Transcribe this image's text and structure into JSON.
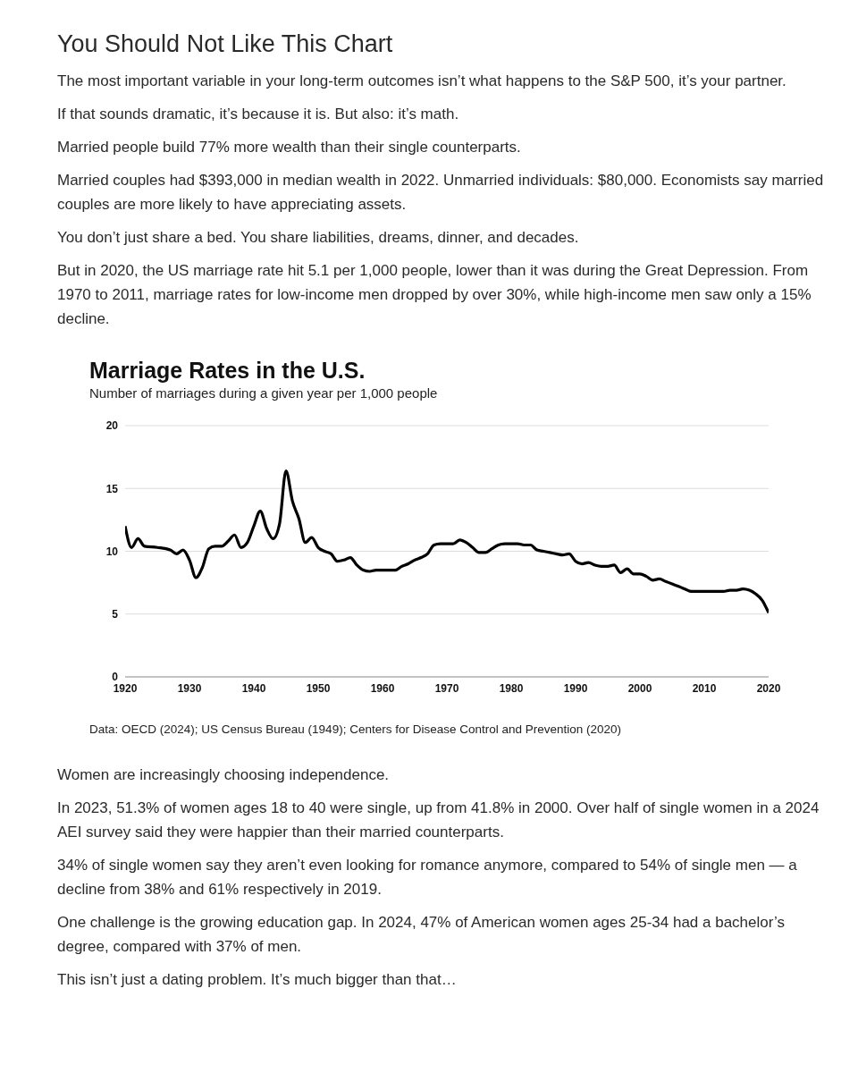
{
  "chart_data": [
    {
      "type": "other",
      "title": "You Should Not Like This Chart",
      "annotations": [
        "The most important variable in your long-term outcomes isn’t what happens to the S&P 500, it’s your partner.",
        "If that sounds dramatic, it’s because it is. But also: it’s math.",
        "Married people build 77% more wealth than their single counterparts.",
        "Married couples had $393,000 in median wealth in 2022. Unmarried individuals: $80,000. Economists say married couples are more likely to have appreciating assets.",
        "You don’t just share a bed. You share liabilities, dreams, dinner, and decades.",
        "But in 2020, the US marriage rate hit 5.1 per 1,000 people, lower than it was during the Great Depression. From 1970 to 2011, marriage rates for low-income men dropped by over 30%, while high-income men saw only a 15% decline."
      ]
    },
    {
      "type": "line",
      "title": "Marriage Rates in the U.S.",
      "subtitle": "Number of marriages during a given year per 1,000 people",
      "grid": "y",
      "legend": false,
      "marker": "none",
      "line_style": "solid",
      "xlim": [
        1920,
        2020
      ],
      "xticks": [
        1920,
        1930,
        1940,
        1950,
        1960,
        1970,
        1980,
        1990,
        2000,
        2010,
        2020
      ],
      "ylim": [
        0,
        20
      ],
      "yticks": [
        0,
        5,
        10,
        15,
        20
      ],
      "annotations": [
        "Data: OECD (2024); US Census Bureau (1949); Centers for Disease Control and Prevention (2020)"
      ],
      "series": [
        {
          "color": "#000000",
          "x": [
            1920,
            1921,
            1922,
            1923,
            1925,
            1927,
            1928,
            1929,
            1930,
            1931,
            1932,
            1933,
            1934,
            1935,
            1936,
            1937,
            1938,
            1939,
            1940,
            1941,
            1942,
            1943,
            1944,
            1945,
            1946,
            1947,
            1948,
            1949,
            1950,
            1951,
            1952,
            1953,
            1954,
            1955,
            1956,
            1957,
            1958,
            1959,
            1960,
            1962,
            1963,
            1964,
            1965,
            1966,
            1967,
            1968,
            1969,
            1970,
            1971,
            1972,
            1973,
            1974,
            1975,
            1976,
            1977,
            1978,
            1979,
            1980,
            1981,
            1982,
            1983,
            1984,
            1985,
            1986,
            1987,
            1988,
            1989,
            1990,
            1991,
            1992,
            1993,
            1994,
            1995,
            1996,
            1997,
            1998,
            1999,
            2000,
            2001,
            2002,
            2003,
            2004,
            2005,
            2006,
            2007,
            2008,
            2009,
            2013,
            2014,
            2015,
            2016,
            2017,
            2018,
            2019,
            2020
          ],
          "values": [
            12.0,
            10.3,
            11.0,
            10.4,
            10.3,
            10.1,
            9.8,
            10.1,
            9.3,
            7.9,
            8.7,
            10.2,
            10.4,
            10.4,
            10.8,
            11.3,
            10.3,
            10.7,
            12.0,
            13.2,
            11.8,
            11.0,
            12.2,
            16.4,
            14.0,
            12.6,
            10.7,
            11.1,
            10.3,
            10.0,
            9.8,
            9.2,
            9.3,
            9.5,
            8.9,
            8.5,
            8.4,
            8.5,
            8.5,
            8.5,
            8.8,
            9.0,
            9.3,
            9.5,
            9.8,
            10.5,
            10.6,
            10.6,
            10.6,
            10.9,
            10.7,
            10.3,
            9.9,
            9.9,
            10.2,
            10.5,
            10.6,
            10.6,
            10.6,
            10.5,
            10.5,
            10.1,
            10.0,
            9.9,
            9.8,
            9.7,
            9.8,
            9.2,
            9.0,
            9.1,
            8.9,
            8.8,
            8.8,
            8.9,
            8.3,
            8.6,
            8.2,
            8.2,
            8.0,
            7.7,
            7.8,
            7.6,
            7.4,
            7.2,
            7.0,
            6.8,
            6.8,
            6.8,
            6.9,
            6.9,
            7.0,
            6.9,
            6.6,
            6.1,
            5.1
          ]
        }
      ]
    },
    {
      "type": "other",
      "annotations": [
        "Women are increasingly choosing independence.",
        "In 2023, 51.3% of women ages 18 to 40 were single, up from 41.8% in 2000. Over half of single women in a 2024 AEI survey said they were happier than their married counterparts.",
        "34% of single women say they aren’t even looking for romance anymore, compared to 54% of single men — a decline from 38% and 61% respectively in 2019.",
        "One challenge is the growing education gap. In 2024, 47% of American women ages 25-34 had a bachelor’s degree, compared with 37% of men.",
        "This isn’t just a dating problem. It’s much bigger than that…"
      ]
    }
  ]
}
